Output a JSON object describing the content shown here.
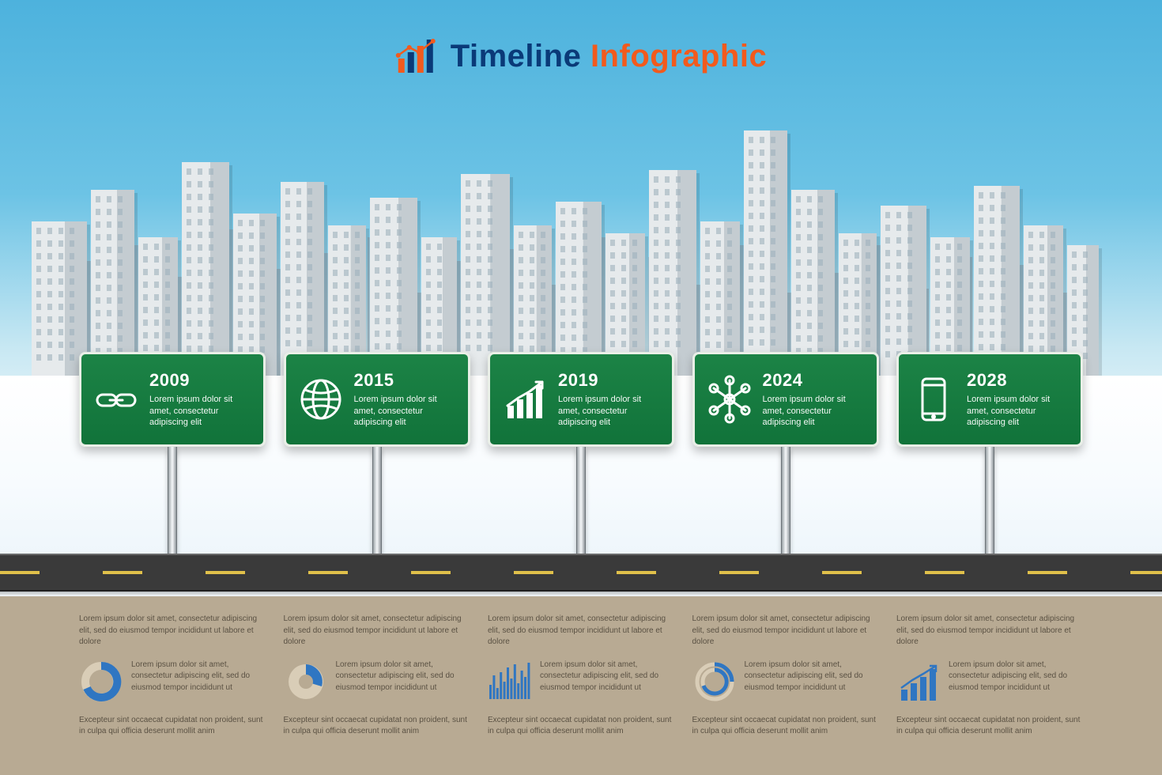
{
  "title": {
    "word1": "Timeline",
    "word2": "Infographic",
    "color1": "#0a3a78",
    "color2": "#f25a1d"
  },
  "colors": {
    "sky_top": "#4db2dd",
    "sky_bottom": "#e8f4f9",
    "sign_green": "#1c8346",
    "sign_border": "#e9efe7",
    "road": "#3a3a3a",
    "lane": "#e0c04a",
    "ground": "#b8aa93",
    "accent_blue": "#2f76c2",
    "building_light": "#e6eaec",
    "building_mid": "#c4ccd1",
    "building_dark": "#8fa2af"
  },
  "signs": [
    {
      "year": "2009",
      "lorem": "Lorem ipsum dolor sit amet, consectetur adipiscing elit",
      "icon": "link"
    },
    {
      "year": "2015",
      "lorem": "Lorem ipsum dolor sit amet, consectetur adipiscing elit",
      "icon": "globe"
    },
    {
      "year": "2019",
      "lorem": "Lorem ipsum dolor sit amet, consectetur adipiscing elit",
      "icon": "growth"
    },
    {
      "year": "2024",
      "lorem": "Lorem ipsum dolor sit amet, consectetur adipiscing elit",
      "icon": "network"
    },
    {
      "year": "2028",
      "lorem": "Lorem ipsum dolor sit amet, consectetur adipiscing elit",
      "icon": "phone"
    }
  ],
  "bottom": [
    {
      "p1": "Lorem ipsum dolor sit amet, consectetur adipiscing elit, sed do eiusmod tempor incididunt ut labore et dolore",
      "p2": "Lorem ipsum dolor sit amet, consectetur adipiscing elit, sed do eiusmod tempor incididunt ut",
      "p3": "Excepteur sint occaecat cupidatat non proident, sunt in culpa qui officia deserunt mollit anim",
      "chart": "donut"
    },
    {
      "p1": "Lorem ipsum dolor sit amet, consectetur adipiscing elit, sed do eiusmod tempor incididunt ut labore et dolore",
      "p2": "Lorem ipsum dolor sit amet, consectetur adipiscing elit, sed do eiusmod tempor incididunt ut",
      "p3": "Excepteur sint occaecat cupidatat non proident, sunt in culpa qui officia deserunt mollit anim",
      "chart": "pie"
    },
    {
      "p1": "Lorem ipsum dolor sit amet, consectetur adipiscing elit, sed do eiusmod tempor incididunt ut labore et dolore",
      "p2": "Lorem ipsum dolor sit amet, consectetur adipiscing elit, sed do eiusmod tempor incididunt ut",
      "p3": "Excepteur sint occaecat cupidatat non proident, sunt in culpa qui officia deserunt mollit anim",
      "chart": "bars"
    },
    {
      "p1": "Lorem ipsum dolor sit amet, consectetur adipiscing elit, sed do eiusmod tempor incididunt ut labore et dolore",
      "p2": "Lorem ipsum dolor sit amet, consectetur adipiscing elit, sed do eiusmod tempor incididunt ut",
      "p3": "Excepteur sint occaecat cupidatat non proident, sunt in culpa qui officia deserunt mollit anim",
      "chart": "radial"
    },
    {
      "p1": "Lorem ipsum dolor sit amet, consectetur adipiscing elit, sed do eiusmod tempor incididunt ut labore et dolore",
      "p2": "Lorem ipsum dolor sit amet, consectetur adipiscing elit, sed do eiusmod tempor incididunt ut",
      "p3": "Excepteur sint occaecat cupidatat non proident, sunt in culpa qui officia deserunt mollit anim",
      "chart": "growth"
    }
  ],
  "skyline": {
    "back": [
      [
        0,
        260,
        60,
        110
      ],
      [
        60,
        220,
        45,
        150
      ],
      [
        110,
        200,
        55,
        170
      ],
      [
        170,
        240,
        40,
        130
      ],
      [
        215,
        180,
        55,
        190
      ],
      [
        275,
        230,
        45,
        140
      ],
      [
        325,
        210,
        50,
        160
      ],
      [
        380,
        250,
        40,
        120
      ],
      [
        425,
        190,
        55,
        180
      ],
      [
        485,
        260,
        35,
        110
      ],
      [
        525,
        220,
        45,
        150
      ],
      [
        575,
        205,
        50,
        165
      ],
      [
        630,
        250,
        45,
        120
      ],
      [
        680,
        190,
        55,
        180
      ],
      [
        740,
        260,
        35,
        110
      ],
      [
        780,
        215,
        50,
        155
      ],
      [
        835,
        250,
        40,
        120
      ],
      [
        880,
        200,
        55,
        170
      ],
      [
        940,
        260,
        40,
        110
      ],
      [
        985,
        235,
        45,
        135
      ],
      [
        1035,
        200,
        55,
        170
      ],
      [
        1095,
        255,
        40,
        115
      ],
      [
        1140,
        215,
        50,
        155
      ],
      [
        1195,
        260,
        45,
        110
      ],
      [
        1245,
        225,
        45,
        145
      ],
      [
        1295,
        260,
        45,
        110
      ]
    ],
    "front": [
      [
        0,
        170,
        70,
        200
      ],
      [
        75,
        130,
        55,
        240
      ],
      [
        135,
        190,
        50,
        180
      ],
      [
        190,
        95,
        60,
        275
      ],
      [
        255,
        160,
        55,
        210
      ],
      [
        315,
        120,
        55,
        250
      ],
      [
        375,
        175,
        48,
        195
      ],
      [
        428,
        140,
        60,
        230
      ],
      [
        493,
        190,
        45,
        180
      ],
      [
        543,
        110,
        62,
        260
      ],
      [
        610,
        175,
        48,
        195
      ],
      [
        663,
        145,
        58,
        225
      ],
      [
        726,
        185,
        50,
        185
      ],
      [
        781,
        105,
        60,
        265
      ],
      [
        846,
        170,
        50,
        200
      ],
      [
        901,
        55,
        55,
        315
      ],
      [
        961,
        130,
        55,
        240
      ],
      [
        1021,
        185,
        48,
        185
      ],
      [
        1074,
        150,
        58,
        220
      ],
      [
        1137,
        190,
        50,
        180
      ],
      [
        1192,
        125,
        58,
        245
      ],
      [
        1255,
        175,
        50,
        195
      ],
      [
        1310,
        200,
        40,
        170
      ]
    ]
  }
}
